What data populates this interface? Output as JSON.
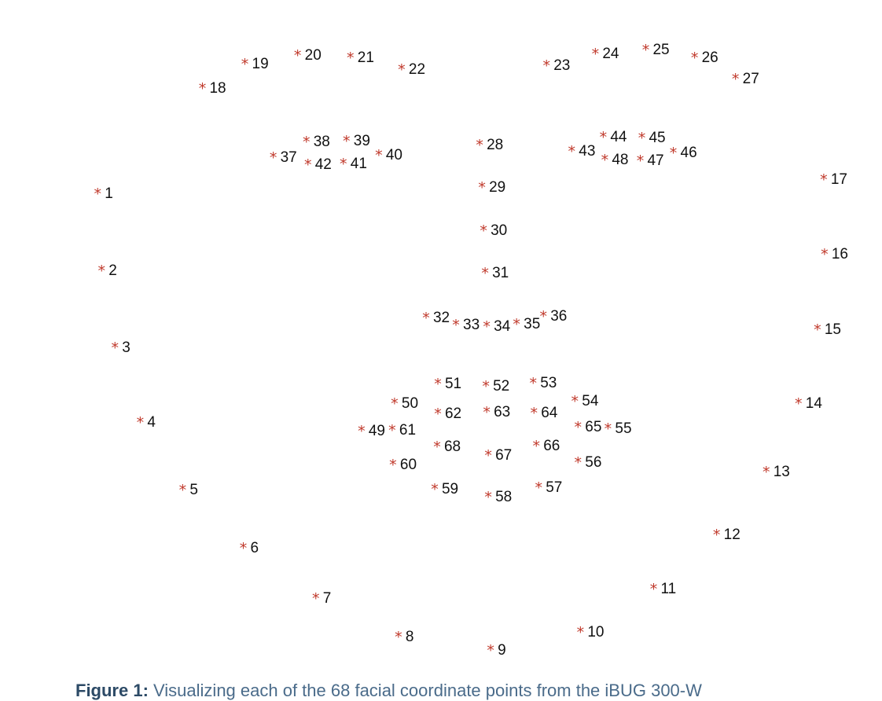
{
  "chart_data": {
    "type": "scatter",
    "marker_symbol": "*",
    "marker_color": "#c0392b",
    "label_color": "#111111",
    "xlim": [
      0,
      1120
    ],
    "ylim": [
      0,
      860
    ],
    "y_inverted": true,
    "points": [
      {
        "label": "1",
        "x": 124,
        "y": 246
      },
      {
        "label": "2",
        "x": 129,
        "y": 344
      },
      {
        "label": "3",
        "x": 146,
        "y": 442
      },
      {
        "label": "4",
        "x": 178,
        "y": 537
      },
      {
        "label": "5",
        "x": 232,
        "y": 623
      },
      {
        "label": "6",
        "x": 309,
        "y": 697
      },
      {
        "label": "7",
        "x": 401,
        "y": 761
      },
      {
        "label": "8",
        "x": 506,
        "y": 810
      },
      {
        "label": "9",
        "x": 623,
        "y": 827
      },
      {
        "label": "10",
        "x": 737,
        "y": 804
      },
      {
        "label": "11",
        "x": 830,
        "y": 749
      },
      {
        "label": "12",
        "x": 910,
        "y": 680
      },
      {
        "label": "13",
        "x": 973,
        "y": 600
      },
      {
        "label": "14",
        "x": 1014,
        "y": 513
      },
      {
        "label": "15",
        "x": 1038,
        "y": 419
      },
      {
        "label": "16",
        "x": 1047,
        "y": 323
      },
      {
        "label": "17",
        "x": 1046,
        "y": 228
      },
      {
        "label": "18",
        "x": 257,
        "y": 112
      },
      {
        "label": "19",
        "x": 311,
        "y": 81
      },
      {
        "label": "20",
        "x": 378,
        "y": 70
      },
      {
        "label": "21",
        "x": 445,
        "y": 73
      },
      {
        "label": "22",
        "x": 510,
        "y": 88
      },
      {
        "label": "23",
        "x": 694,
        "y": 83
      },
      {
        "label": "24",
        "x": 756,
        "y": 68
      },
      {
        "label": "25",
        "x": 820,
        "y": 63
      },
      {
        "label": "26",
        "x": 882,
        "y": 73
      },
      {
        "label": "27",
        "x": 934,
        "y": 100
      },
      {
        "label": "28",
        "x": 609,
        "y": 184
      },
      {
        "label": "29",
        "x": 612,
        "y": 238
      },
      {
        "label": "30",
        "x": 614,
        "y": 293
      },
      {
        "label": "31",
        "x": 616,
        "y": 347
      },
      {
        "label": "32",
        "x": 541,
        "y": 404
      },
      {
        "label": "33",
        "x": 579,
        "y": 413
      },
      {
        "label": "34",
        "x": 618,
        "y": 415
      },
      {
        "label": "35",
        "x": 656,
        "y": 412
      },
      {
        "label": "36",
        "x": 690,
        "y": 402
      },
      {
        "label": "37",
        "x": 347,
        "y": 200
      },
      {
        "label": "38",
        "x": 389,
        "y": 180
      },
      {
        "label": "39",
        "x": 440,
        "y": 179
      },
      {
        "label": "40",
        "x": 481,
        "y": 197
      },
      {
        "label": "41",
        "x": 436,
        "y": 208
      },
      {
        "label": "42",
        "x": 391,
        "y": 209
      },
      {
        "label": "43",
        "x": 726,
        "y": 192
      },
      {
        "label": "44",
        "x": 766,
        "y": 174
      },
      {
        "label": "45",
        "x": 815,
        "y": 175
      },
      {
        "label": "46",
        "x": 855,
        "y": 194
      },
      {
        "label": "47",
        "x": 813,
        "y": 204
      },
      {
        "label": "48",
        "x": 768,
        "y": 203
      },
      {
        "label": "49",
        "x": 459,
        "y": 548
      },
      {
        "label": "50",
        "x": 501,
        "y": 513
      },
      {
        "label": "51",
        "x": 556,
        "y": 488
      },
      {
        "label": "52",
        "x": 617,
        "y": 491
      },
      {
        "label": "53",
        "x": 677,
        "y": 487
      },
      {
        "label": "54",
        "x": 730,
        "y": 510
      },
      {
        "label": "55",
        "x": 772,
        "y": 545
      },
      {
        "label": "56",
        "x": 734,
        "y": 588
      },
      {
        "label": "57",
        "x": 684,
        "y": 620
      },
      {
        "label": "58",
        "x": 620,
        "y": 632
      },
      {
        "label": "59",
        "x": 552,
        "y": 622
      },
      {
        "label": "60",
        "x": 499,
        "y": 591
      },
      {
        "label": "61",
        "x": 498,
        "y": 547
      },
      {
        "label": "62",
        "x": 556,
        "y": 526
      },
      {
        "label": "63",
        "x": 618,
        "y": 524
      },
      {
        "label": "64",
        "x": 678,
        "y": 525
      },
      {
        "label": "65",
        "x": 734,
        "y": 543
      },
      {
        "label": "66",
        "x": 681,
        "y": 567
      },
      {
        "label": "67",
        "x": 620,
        "y": 579
      },
      {
        "label": "68",
        "x": 555,
        "y": 568
      }
    ]
  },
  "caption": {
    "label": "Figure 1:",
    "text": " Visualizing each of the 68 facial coordinate points from the iBUG 300-W"
  }
}
